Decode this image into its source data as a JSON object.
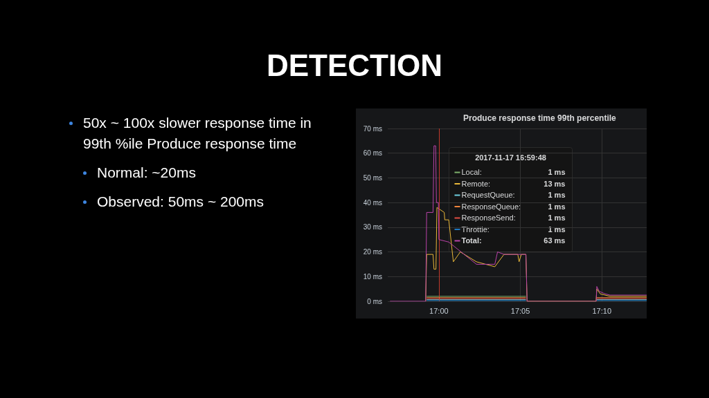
{
  "chart_data": {
    "type": "line",
    "title": "DETECTION",
    "subtitle": "Produce response time 99th percentile",
    "xlim": [
      16.9477,
      17.2125
    ],
    "xticks": [
      {
        "value": 17,
        "label": "17:00"
      },
      {
        "value": 17.08333,
        "label": "17:05"
      },
      {
        "value": 17.16667,
        "label": "17:10"
      }
    ],
    "ylim": [
      0,
      70
    ],
    "yticks": [
      {
        "value": 0,
        "label": "0 ms"
      },
      {
        "value": 10,
        "label": "10 ms"
      },
      {
        "value": 20,
        "label": "20 ms"
      },
      {
        "value": 30,
        "label": "30 ms"
      },
      {
        "value": 40,
        "label": "40 ms"
      },
      {
        "value": 50,
        "label": "50 ms"
      },
      {
        "value": 60,
        "label": "60 ms"
      },
      {
        "value": 70,
        "label": "70 ms"
      }
    ],
    "grid": true,
    "legend": "top",
    "ref_lines": [
      {
        "axis": "x",
        "value": 17,
        "color": "#c0392b"
      }
    ],
    "series": [
      {
        "name": "Local:",
        "color": "#7eb26d",
        "x": [
          16.9875,
          17.089
        ],
        "values": [
          2,
          2
        ]
      },
      {
        "name": "Remote:",
        "color": "#eab839",
        "x": [
          16.9865,
          16.9875,
          16.994,
          16.995,
          16.997,
          16.998,
          17.0055,
          17.006,
          17.0101,
          17.0148,
          17.0219,
          17.0384,
          17.0572,
          17.0666,
          17.0807,
          17.082,
          17.0843,
          17.089,
          17.0902,
          17.1608,
          17.1615,
          17.165,
          17.175,
          17.2125
        ],
        "values": [
          0,
          19,
          19,
          13,
          13,
          38,
          36,
          33,
          33,
          16,
          20,
          16,
          14,
          19,
          19,
          16,
          19,
          19,
          0,
          0,
          5,
          3,
          2,
          2
        ]
      },
      {
        "name": "RequestQueue:",
        "color": "#6ed0e0",
        "x": [
          16.9875,
          17.089,
          17.0902,
          17.1608,
          17.1615,
          17.2125
        ],
        "values": [
          0.6,
          0.6,
          null,
          null,
          0.6,
          0.6
        ]
      },
      {
        "name": "ResponseQueue:",
        "color": "#ef843c",
        "x": [
          16.9875,
          17.089,
          17.0902,
          17.1608,
          17.1615,
          17.2125
        ],
        "values": [
          1.5,
          1.5,
          null,
          null,
          1.5,
          1.5
        ]
      },
      {
        "name": "ResponseSend:",
        "color": "#e24d42",
        "x": [
          16.9875,
          17.089,
          17.0902,
          17.1608,
          17.1615,
          17.2125
        ],
        "values": [
          1,
          1,
          null,
          null,
          1,
          1
        ]
      },
      {
        "name": "Throttle:",
        "color": "#1f78c1",
        "x": [
          16.9875,
          17.089,
          17.0902,
          17.1608,
          17.1615,
          17.2125
        ],
        "values": [
          0.3,
          0.3,
          null,
          null,
          0.3,
          0.3
        ]
      },
      {
        "name": "Total:",
        "color": "#ba43a9",
        "x": [
          16.95,
          16.9865,
          16.9875,
          16.994,
          16.995,
          16.9967,
          16.9975,
          16.9995,
          17.0,
          17.0101,
          17.0384,
          17.0572,
          17.06,
          17.0666,
          17.089,
          17.0902,
          17.1608,
          17.1615,
          17.164,
          17.17,
          17.175,
          17.2125
        ],
        "values": [
          0,
          0,
          36,
          36,
          63,
          63,
          40,
          40,
          25,
          24,
          15,
          15,
          20,
          19,
          19,
          0,
          0,
          6,
          4,
          3,
          2.5,
          2.5
        ]
      }
    ],
    "annotations": [
      "50x ~ 100x slower response time in 99th %ile Produce response time",
      "Normal: ~20ms",
      "Observed: 50ms ~ 200ms",
      "2017-11-17 16:59:48",
      "1 ms",
      "13 ms",
      "1 ms",
      "1 ms",
      "1 ms",
      "1 ms",
      "63 ms"
    ]
  }
}
